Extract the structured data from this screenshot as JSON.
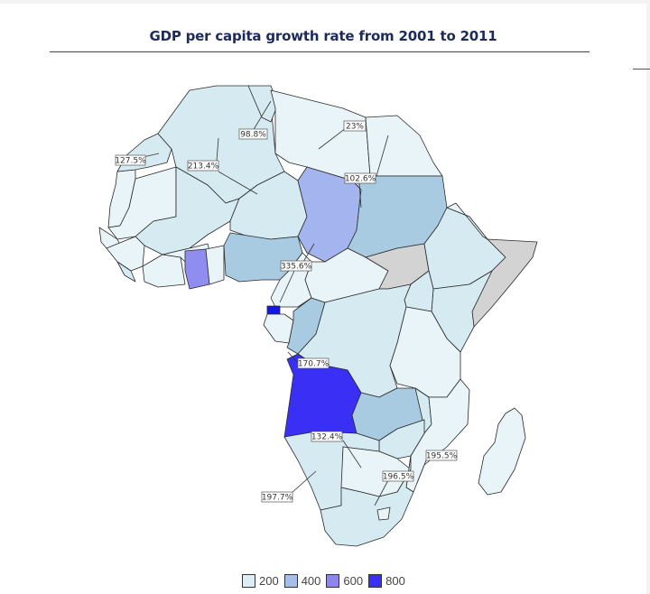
{
  "title": "GDP per capita growth rate from 2001 to 2011",
  "colors": {
    "no_data": "#d3d3d3",
    "c1": "#e8f4f7",
    "c2": "#d5eaf1",
    "c3": "#a8cbe2",
    "c4": "#a3b4ef",
    "c5": "#8f8ef0",
    "c6": "#3a30f5",
    "c7": "#1515e6",
    "border": "#2a2a2a"
  },
  "labels": [
    {
      "id": "morocco",
      "text": "127.5%"
    },
    {
      "id": "algeria",
      "text": "213.4%"
    },
    {
      "id": "tunisia",
      "text": "98.8%"
    },
    {
      "id": "libya_egypt",
      "text": "23%"
    },
    {
      "id": "sudan",
      "text": "102.6%"
    },
    {
      "id": "nigeria",
      "text": "335.6%"
    },
    {
      "id": "angola",
      "text": "170.7%"
    },
    {
      "id": "namibia",
      "text": "132.4%"
    },
    {
      "id": "mozambique",
      "text": "195.5%"
    },
    {
      "id": "swaziland",
      "text": "196.5%"
    },
    {
      "id": "south_africa",
      "text": "197.7%"
    }
  ],
  "legend": [
    {
      "label": "200",
      "color": "#dceef5"
    },
    {
      "label": "400",
      "color": "#a8bde8"
    },
    {
      "label": "600",
      "color": "#8f86ec"
    },
    {
      "label": "800",
      "color": "#3a30f5"
    }
  ]
}
